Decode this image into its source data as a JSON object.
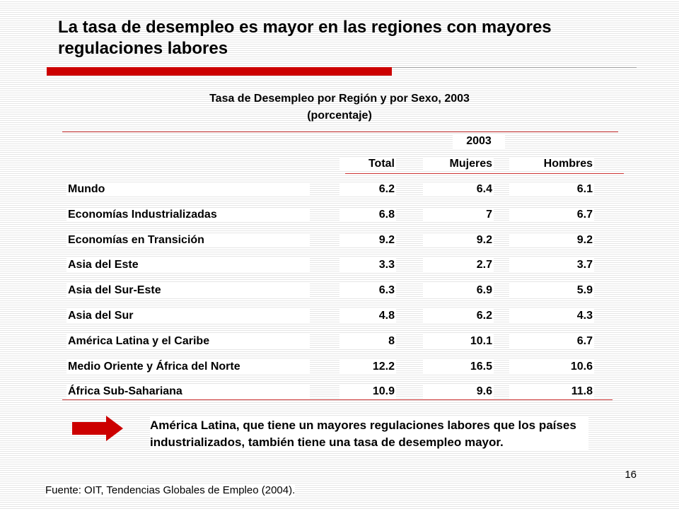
{
  "slide": {
    "title": "La tasa de desempleo es mayor en las regiones con mayores regulaciones labores",
    "page_number": "16",
    "accent_color": "#cc0000"
  },
  "table": {
    "title": "Tasa de Desempleo por Región y por Sexo, 2003",
    "subtitle": "(porcentaje)",
    "year_header": "2003",
    "columns": [
      "Total",
      "Mujeres",
      "Hombres"
    ],
    "rows": [
      {
        "region": "Mundo",
        "total": "6.2",
        "mujeres": "6.4",
        "hombres": "6.1"
      },
      {
        "region": "Economías Industrializadas",
        "total": "6.8",
        "mujeres": "7",
        "hombres": "6.7"
      },
      {
        "region": "Economías en Transición",
        "total": "9.2",
        "mujeres": "9.2",
        "hombres": "9.2"
      },
      {
        "region": "Asia del Este",
        "total": "3.3",
        "mujeres": "2.7",
        "hombres": "3.7"
      },
      {
        "region": "Asia del Sur-Este",
        "total": "6.3",
        "mujeres": "6.9",
        "hombres": "5.9"
      },
      {
        "region": "Asia del Sur",
        "total": "4.8",
        "mujeres": "6.2",
        "hombres": "4.3"
      },
      {
        "region": "América Latina y el Caribe",
        "total": "8",
        "mujeres": "10.1",
        "hombres": "6.7"
      },
      {
        "region": "Medio Oriente y África del Norte",
        "total": "12.2",
        "mujeres": "16.5",
        "hombres": "10.6"
      },
      {
        "region": "África Sub-Sahariana",
        "total": "10.9",
        "mujeres": "9.6",
        "hombres": "11.8"
      }
    ]
  },
  "note": {
    "icon": "right-arrow-icon",
    "text": "América Latina, que tiene un mayores regulaciones labores que los países industrializados, también tiene una tasa de desempleo mayor."
  },
  "source": "Fuente: OIT, Tendencias Globales de Empleo (2004)."
}
